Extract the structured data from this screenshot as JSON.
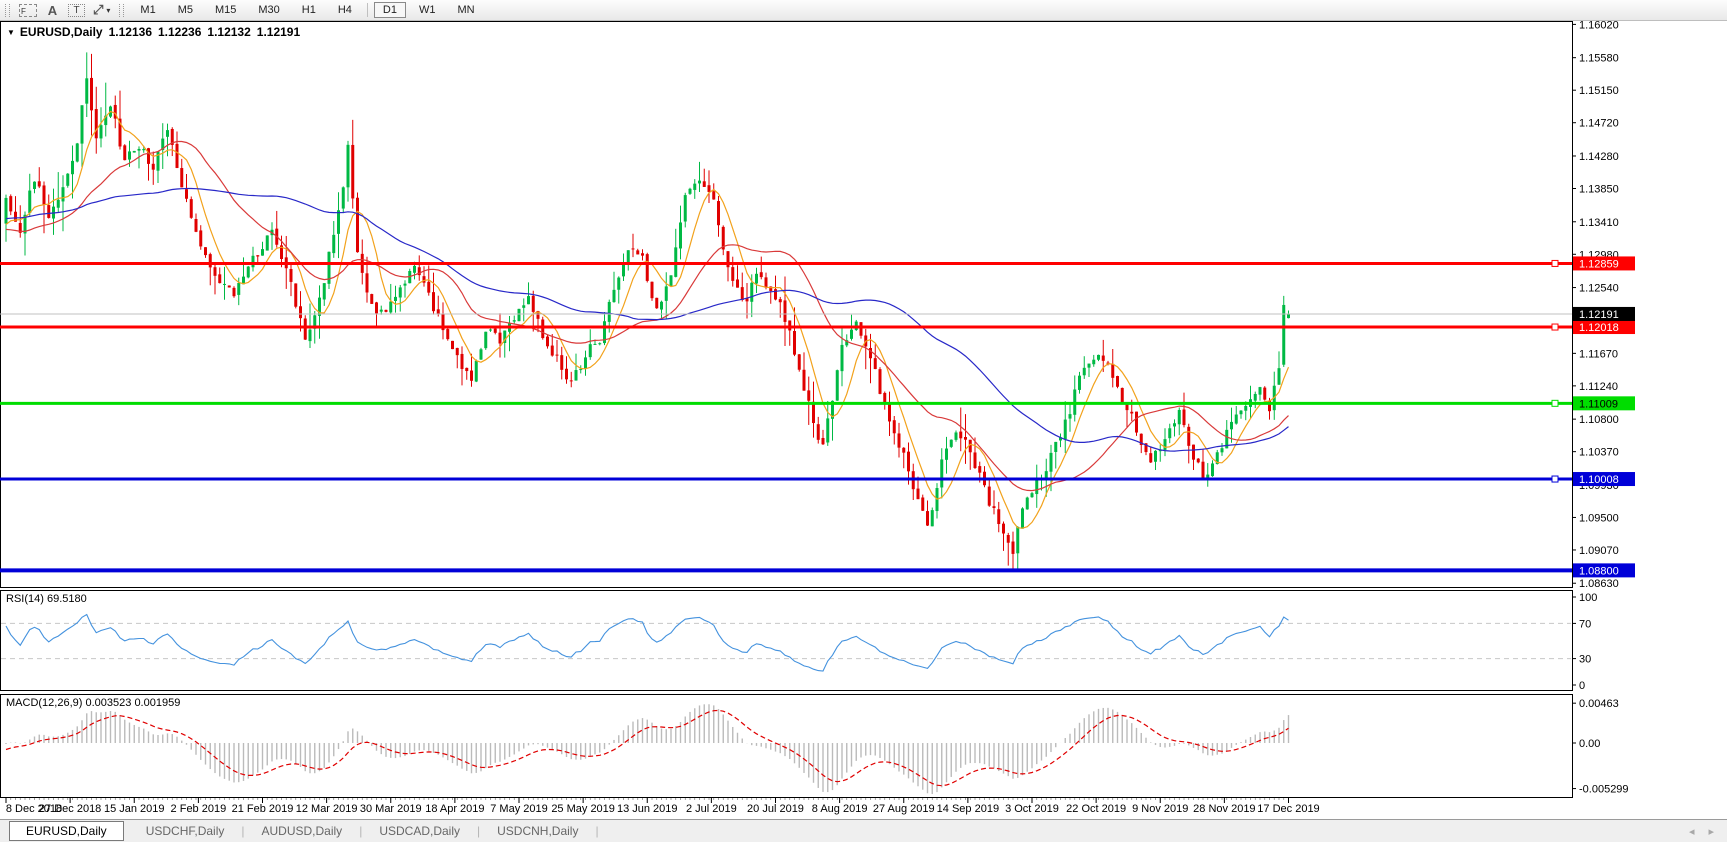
{
  "icons": {
    "collapse": "▼",
    "caret": "▾",
    "tab_separator": "|",
    "arrow_left": "◂",
    "arrow_right": "▸"
  },
  "toolbar": {
    "tools": [
      {
        "name": "chart-frame-tool",
        "glyph": "F",
        "style": "t-dash"
      },
      {
        "name": "text-label-tool",
        "glyph": "A",
        "style": "t-plain"
      },
      {
        "name": "text-box-tool",
        "glyph": "T",
        "style": "t-dot"
      },
      {
        "name": "arrows-tool",
        "glyph": "⤢",
        "style": "t-plain",
        "caret": true
      }
    ],
    "timeframes": [
      "M1",
      "M5",
      "M15",
      "M30",
      "H1",
      "H4",
      "D1",
      "W1",
      "MN"
    ],
    "active_timeframe": "D1"
  },
  "chart": {
    "title": {
      "symbol": "EURUSD,Daily",
      "open": "1.12136",
      "high": "1.12236",
      "low": "1.12132",
      "close": "1.12191"
    },
    "price_axis": {
      "ticks": [
        "1.16020",
        "1.15580",
        "1.15150",
        "1.14720",
        "1.14280",
        "1.13850",
        "1.13410",
        "1.12980",
        "1.12540",
        "1.11670",
        "1.11240",
        "1.10800",
        "1.10370",
        "1.09930",
        "1.09500",
        "1.09070",
        "1.08630"
      ]
    },
    "lines": [
      {
        "price": 1.12859,
        "label": "1.12859",
        "color": "#FF0000",
        "text": "#FFFFFF",
        "width": 3,
        "marker": true
      },
      {
        "price": 1.12018,
        "label": "1.12018",
        "color": "#FF0000",
        "text": "#FFFFFF",
        "width": 3,
        "marker": true
      },
      {
        "price": 1.11009,
        "label": "1.11009",
        "color": "#00DD00",
        "text": "#000000",
        "width": 3,
        "marker": true
      },
      {
        "price": 1.10008,
        "label": "1.10008",
        "color": "#0000D8",
        "text": "#FFFFFF",
        "width": 3,
        "marker": true
      },
      {
        "price": 1.088,
        "label": "1.08800",
        "color": "#0000D8",
        "text": "#FFFFFF",
        "width": 4,
        "marker": false
      }
    ],
    "current_price": {
      "value": 1.12191,
      "label": "1.12191",
      "line_color": "#C0C0C0",
      "label_bg": "#000000",
      "label_text": "#FFFFFF"
    },
    "dates": [
      "8 Dec 2018",
      "27 Dec 2018",
      "15 Jan 2019",
      "2 Feb 2019",
      "21 Feb 2019",
      "12 Mar 2019",
      "30 Mar 2019",
      "18 Apr 2019",
      "7 May 2019",
      "25 May 2019",
      "13 Jun 2019",
      "2 Jul 2019",
      "20 Jul 2019",
      "8 Aug 2019",
      "27 Aug 2019",
      "14 Sep 2019",
      "3 Oct 2019",
      "22 Oct 2019",
      "9 Nov 2019",
      "28 Nov 2019",
      "17 Dec 2019"
    ]
  },
  "rsi": {
    "label": "RSI(14)",
    "value": "69.5180",
    "ticks": [
      "100",
      "70",
      "30",
      "0"
    ],
    "levels": [
      70,
      30
    ]
  },
  "macd": {
    "label": "MACD(12,26,9)",
    "main_value": "0.003523",
    "signal_value": "0.001959",
    "ticks": [
      "0.00463",
      "0.00",
      "-0.005299"
    ]
  },
  "tabs": [
    {
      "label": "EURUSD,Daily",
      "active": true
    },
    {
      "label": "USDCHF,Daily",
      "active": false
    },
    {
      "label": "AUDUSD,Daily",
      "active": false
    },
    {
      "label": "USDCAD,Daily",
      "active": false
    },
    {
      "label": "USDCNH,Daily",
      "active": false
    }
  ],
  "chart_data": {
    "type": "candlestick",
    "symbol": "EURUSD",
    "timeframe": "Daily",
    "visible_range": {
      "start": "8 Dec 2018",
      "end": "17 Dec 2019"
    },
    "y_axis_range": [
      1.0857,
      1.1607
    ],
    "candle_count": 271,
    "last_candle": {
      "open": 1.12136,
      "high": 1.12236,
      "low": 1.12132,
      "close": 1.12191
    },
    "horizontal_levels": [
      1.12859,
      1.12018,
      1.11009,
      1.10008,
      1.088
    ],
    "close_path_anchors": [
      [
        0,
        1.1365
      ],
      [
        3,
        1.1325
      ],
      [
        6,
        1.14
      ],
      [
        9,
        1.1345
      ],
      [
        12,
        1.1385
      ],
      [
        15,
        1.145
      ],
      [
        17,
        1.153
      ],
      [
        19,
        1.145
      ],
      [
        22,
        1.1495
      ],
      [
        25,
        1.142
      ],
      [
        28,
        1.144
      ],
      [
        31,
        1.1415
      ],
      [
        34,
        1.1465
      ],
      [
        37,
        1.139
      ],
      [
        40,
        1.133
      ],
      [
        44,
        1.127
      ],
      [
        48,
        1.1245
      ],
      [
        52,
        1.129
      ],
      [
        56,
        1.133
      ],
      [
        60,
        1.126
      ],
      [
        63,
        1.1185
      ],
      [
        66,
        1.124
      ],
      [
        69,
        1.132
      ],
      [
        71,
        1.139
      ],
      [
        72,
        1.1435
      ],
      [
        74,
        1.13
      ],
      [
        77,
        1.123
      ],
      [
        80,
        1.122
      ],
      [
        83,
        1.125
      ],
      [
        86,
        1.128
      ],
      [
        89,
        1.124
      ],
      [
        92,
        1.12
      ],
      [
        95,
        1.116
      ],
      [
        98,
        1.1125
      ],
      [
        101,
        1.12
      ],
      [
        104,
        1.1185
      ],
      [
        107,
        1.1215
      ],
      [
        110,
        1.1235
      ],
      [
        113,
        1.119
      ],
      [
        116,
        1.116
      ],
      [
        119,
        1.113
      ],
      [
        122,
        1.1165
      ],
      [
        125,
        1.1185
      ],
      [
        128,
        1.125
      ],
      [
        131,
        1.131
      ],
      [
        134,
        1.129
      ],
      [
        137,
        1.1225
      ],
      [
        140,
        1.1265
      ],
      [
        143,
        1.137
      ],
      [
        146,
        1.1395
      ],
      [
        149,
        1.1365
      ],
      [
        152,
        1.1285
      ],
      [
        155,
        1.123
      ],
      [
        158,
        1.127
      ],
      [
        161,
        1.125
      ],
      [
        164,
        1.1215
      ],
      [
        167,
        1.115
      ],
      [
        170,
        1.1075
      ],
      [
        172,
        1.1045
      ],
      [
        174,
        1.1105
      ],
      [
        176,
        1.1185
      ],
      [
        179,
        1.1205
      ],
      [
        182,
        1.116
      ],
      [
        185,
        1.1095
      ],
      [
        188,
        1.1045
      ],
      [
        191,
        1.0995
      ],
      [
        194,
        1.0935
      ],
      [
        197,
        1.1025
      ],
      [
        200,
        1.107
      ],
      [
        203,
        1.1035
      ],
      [
        206,
        1.0985
      ],
      [
        209,
        1.0945
      ],
      [
        212,
        1.09
      ],
      [
        214,
        1.0965
      ],
      [
        217,
        1.0995
      ],
      [
        220,
        1.103
      ],
      [
        223,
        1.1075
      ],
      [
        226,
        1.113
      ],
      [
        229,
        1.1165
      ],
      [
        232,
        1.115
      ],
      [
        235,
        1.111
      ],
      [
        238,
        1.1065
      ],
      [
        241,
        1.1025
      ],
      [
        244,
        1.1055
      ],
      [
        247,
        1.1085
      ],
      [
        250,
        1.1025
      ],
      [
        253,
        1.1
      ],
      [
        256,
        1.1045
      ],
      [
        259,
        1.1085
      ],
      [
        262,
        1.111
      ],
      [
        264,
        1.113
      ],
      [
        266,
        1.1095
      ],
      [
        268,
        1.115
      ],
      [
        269,
        1.119
      ],
      [
        270,
        1.1219
      ]
    ],
    "candle_overrides": {
      "17": {
        "h": 1.1565
      },
      "72": {
        "h": 1.1448
      },
      "212": {
        "l": 1.0881
      },
      "269": {
        "o": 1.1152,
        "c": 1.1231,
        "h": 1.1243,
        "l": 1.1149
      },
      "270": {
        "o": 1.12136,
        "h": 1.12236,
        "l": 1.12132,
        "c": 1.12191
      }
    },
    "moving_averages": [
      {
        "period": 7,
        "color": "#F2A21C"
      },
      {
        "period": 25,
        "color": "#D93A3A"
      },
      {
        "period": 60,
        "color": "#2828C8"
      }
    ],
    "indicators": [
      {
        "name": "RSI",
        "period": 14,
        "current": 69.518,
        "levels": [
          70,
          30
        ],
        "range": [
          0,
          100
        ]
      },
      {
        "name": "MACD",
        "fast": 12,
        "slow": 26,
        "signal": 9,
        "current_main": 0.003523,
        "current_signal": 0.001959,
        "axis_max": 0.00463,
        "axis_min": -0.005299
      }
    ],
    "colors": {
      "bull": "#00B944",
      "bear": "#E00000",
      "rsi": "#4492DE",
      "macd_hist": "#BBBBBB",
      "macd_signal": "#E00000",
      "background": "#FFFFFF",
      "foreground": "#000000"
    }
  }
}
